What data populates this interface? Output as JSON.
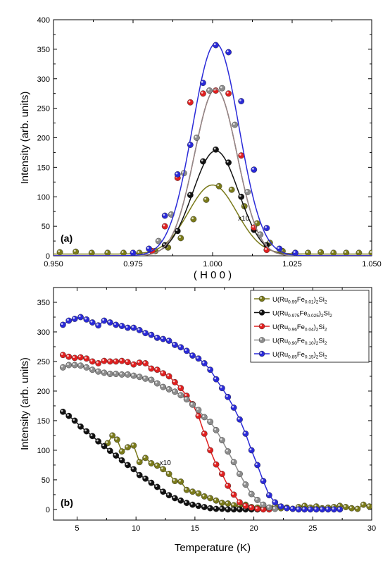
{
  "chart_data": [
    {
      "type": "scatter",
      "panel_label": "(a)",
      "xlabel": "( H 0 0 )",
      "ylabel": "Intensity (arb. units)",
      "xlim": [
        0.95,
        1.05
      ],
      "ylim": [
        0,
        400
      ],
      "xticks": [
        0.95,
        0.975,
        1.0,
        1.025,
        1.05
      ],
      "xtick_labels": [
        "0.950",
        "0.975",
        "1.000",
        "1.025",
        "1.050"
      ],
      "yticks": [
        0,
        50,
        100,
        150,
        200,
        250,
        300,
        350,
        400
      ],
      "ytick_labels": [
        "0",
        "50",
        "100",
        "150",
        "200",
        "250",
        "300",
        "350",
        "400"
      ],
      "annotations": [
        {
          "text": "x10",
          "x": 1.008,
          "y": 60
        }
      ],
      "series": [
        {
          "color": "#7a7a1a",
          "fit_center": 1.0,
          "fit_amplitude": 117,
          "fit_sigma": 0.0076,
          "fit_baseline": 3,
          "x": [
            0.952,
            0.957,
            0.962,
            0.967,
            0.972,
            0.977,
            0.982,
            0.986,
            0.99,
            0.994,
            0.998,
            1.002,
            1.006,
            1.01,
            1.014,
            1.018,
            1.022,
            1.026,
            1.03,
            1.034,
            1.038,
            1.042,
            1.046,
            1.05
          ],
          "y": [
            6,
            7,
            5,
            5,
            5,
            5,
            8,
            14,
            30,
            62,
            95,
            118,
            112,
            84,
            55,
            22,
            8,
            5,
            5,
            6,
            5,
            5,
            5,
            5
          ]
        },
        {
          "color": "#111111",
          "fit_center": 1.001,
          "fit_amplitude": 178,
          "fit_sigma": 0.0072,
          "x": [
            0.985,
            0.989,
            0.993,
            0.997,
            1.001,
            1.005,
            1.009,
            1.013,
            1.017
          ],
          "y": [
            18,
            42,
            103,
            160,
            180,
            158,
            100,
            44,
            18
          ]
        },
        {
          "color": "#e02020",
          "fit_center": 1.001,
          "fit_amplitude": 283,
          "fit_sigma": 0.0067,
          "x": [
            0.981,
            0.985,
            0.989,
            0.993,
            0.997,
            1.001,
            1.005,
            1.009,
            1.013,
            1.017
          ],
          "y": [
            8,
            50,
            132,
            260,
            275,
            280,
            275,
            170,
            48,
            10
          ]
        },
        {
          "color": "#8c8c8c",
          "fit_center": 1.001,
          "fit_amplitude": 283,
          "fit_sigma": 0.0067,
          "x": [
            0.983,
            0.987,
            0.991,
            0.995,
            0.999,
            1.003,
            1.007,
            1.011,
            1.015
          ],
          "y": [
            25,
            70,
            140,
            200,
            280,
            284,
            222,
            108,
            36
          ]
        },
        {
          "color": "#2a2ad8",
          "fit_center": 1.001,
          "fit_amplitude": 360,
          "fit_sigma": 0.0073,
          "x": [
            0.975,
            0.98,
            0.985,
            0.989,
            0.993,
            0.997,
            1.001,
            1.005,
            1.009,
            1.013,
            1.017,
            1.021,
            1.026
          ],
          "y": [
            5,
            12,
            68,
            138,
            188,
            293,
            357,
            345,
            262,
            146,
            47,
            12,
            5
          ]
        }
      ]
    },
    {
      "type": "line",
      "panel_label": "(b)",
      "xlabel": "Temperature (K)",
      "ylabel": "Intensity (arb. units)",
      "xlim": [
        3,
        30
      ],
      "ylim": [
        -18,
        375
      ],
      "xticks": [
        5,
        10,
        15,
        20,
        25,
        30
      ],
      "xtick_labels": [
        "5",
        "10",
        "15",
        "20",
        "25",
        "30"
      ],
      "yticks": [
        0,
        50,
        100,
        150,
        200,
        250,
        300,
        350
      ],
      "ytick_labels": [
        "0",
        "50",
        "100",
        "150",
        "200",
        "250",
        "300",
        "350"
      ],
      "legend_position": "top-right",
      "annotations": [
        {
          "text": "x10",
          "x": 12.0,
          "y": 75
        }
      ],
      "series": [
        {
          "name": "U(Ru0.99Fe0.01)2Si2",
          "legend_parts": [
            "U(Ru",
            "0.99",
            "Fe",
            "0.01",
            ")",
            "2",
            "Si",
            "2"
          ],
          "color": "#7a7a1a",
          "x": [
            7.6,
            8.0,
            8.4,
            8.8,
            9.3,
            9.8,
            10.3,
            10.8,
            11.3,
            11.8,
            12.3,
            12.8,
            13.3,
            13.8,
            14.3,
            14.8,
            15.3,
            15.8,
            16.3,
            16.8,
            17.3,
            17.8,
            18.3,
            18.8,
            19.3,
            19.8,
            20.3,
            20.8,
            21.3,
            21.8,
            22.3,
            22.8,
            23.3,
            23.8,
            24.3,
            24.8,
            25.3,
            25.8,
            26.3,
            26.8,
            27.3,
            27.8,
            28.3,
            28.8,
            29.3,
            29.8
          ],
          "y": [
            112,
            125,
            118,
            98,
            105,
            108,
            80,
            87,
            78,
            74,
            68,
            60,
            48,
            47,
            33,
            30,
            27,
            22,
            19,
            15,
            11,
            10,
            7,
            6,
            8,
            4,
            3,
            2,
            3,
            5,
            2,
            3,
            1,
            4,
            6,
            3,
            5,
            2,
            3,
            4,
            6,
            4,
            2,
            1,
            8,
            5
          ]
        },
        {
          "name": "U(Ru0.975Fe0.025)2Si2",
          "legend_parts": [
            "U(Ru",
            "0.975",
            "Fe",
            "0.025",
            ")",
            "2",
            "Si",
            "2"
          ],
          "color": "#111111",
          "x": [
            3.8,
            4.3,
            4.8,
            5.3,
            5.8,
            6.3,
            6.8,
            7.3,
            7.8,
            8.3,
            8.8,
            9.3,
            9.8,
            10.3,
            10.8,
            11.3,
            11.8,
            12.3,
            12.8,
            13.3,
            13.8,
            14.3,
            14.8,
            15.3,
            15.8,
            16.3,
            16.8,
            17.3,
            17.8,
            18.3,
            18.8,
            19.3,
            19.8,
            20.3
          ],
          "y": [
            165,
            158,
            150,
            140,
            132,
            124,
            115,
            107,
            99,
            91,
            83,
            75,
            68,
            58,
            52,
            45,
            38,
            30,
            24,
            19,
            15,
            11,
            8,
            6,
            4,
            2,
            1,
            1,
            0,
            0,
            0,
            0,
            0,
            0
          ]
        },
        {
          "name": "U(Ru0.96Fe0.04)2Si2",
          "legend_parts": [
            "U(Ru",
            "0.96",
            "Fe",
            "0.04",
            ")",
            "2",
            "Si",
            "2"
          ],
          "color": "#e02020",
          "x": [
            3.8,
            4.3,
            4.8,
            5.3,
            5.8,
            6.3,
            6.8,
            7.3,
            7.8,
            8.3,
            8.8,
            9.3,
            9.8,
            10.3,
            10.8,
            11.3,
            11.8,
            12.3,
            12.8,
            13.3,
            13.8,
            14.3,
            14.8,
            15.3,
            15.8,
            16.3,
            16.8,
            17.3,
            17.8,
            18.3,
            18.8,
            19.3,
            19.8,
            20.3,
            20.8,
            21.3
          ],
          "y": [
            261,
            258,
            256,
            257,
            255,
            250,
            247,
            251,
            250,
            250,
            251,
            249,
            245,
            248,
            247,
            238,
            236,
            230,
            225,
            215,
            205,
            192,
            178,
            158,
            128,
            100,
            76,
            60,
            40,
            25,
            12,
            6,
            3,
            1,
            0,
            0
          ]
        },
        {
          "name": "U(Ru0.90Fe0.10)2Si2",
          "legend_parts": [
            "U(Ru",
            "0.90",
            "Fe",
            "0.10",
            ")",
            "2",
            "Si",
            "2"
          ],
          "color": "#8c8c8c",
          "x": [
            3.8,
            4.3,
            4.8,
            5.3,
            5.8,
            6.3,
            6.8,
            7.3,
            7.8,
            8.3,
            8.8,
            9.3,
            9.8,
            10.3,
            10.8,
            11.3,
            11.8,
            12.3,
            12.8,
            13.3,
            13.8,
            14.3,
            14.8,
            15.3,
            15.8,
            16.3,
            16.8,
            17.3,
            17.8,
            18.3,
            18.8,
            19.3,
            19.8,
            20.3,
            20.8,
            21.3,
            21.8
          ],
          "y": [
            240,
            244,
            244,
            243,
            240,
            236,
            233,
            231,
            229,
            229,
            228,
            228,
            226,
            224,
            221,
            219,
            213,
            207,
            203,
            199,
            193,
            186,
            177,
            168,
            156,
            148,
            134,
            117,
            98,
            80,
            60,
            42,
            26,
            16,
            8,
            3,
            1
          ]
        },
        {
          "name": "U(Ru0.85Fe0.15)2Si2",
          "legend_parts": [
            "U(Ru",
            "0.85",
            "Fe",
            "0.15",
            ")",
            "2",
            "Si",
            "2"
          ],
          "color": "#2a2ad8",
          "x": [
            3.8,
            4.3,
            4.8,
            5.3,
            5.8,
            6.3,
            6.8,
            7.3,
            7.8,
            8.3,
            8.8,
            9.3,
            9.8,
            10.3,
            10.8,
            11.3,
            11.8,
            12.3,
            12.8,
            13.3,
            13.8,
            14.3,
            14.8,
            15.3,
            15.8,
            16.3,
            16.8,
            17.3,
            17.8,
            18.3,
            18.8,
            19.3,
            19.8,
            20.3,
            20.8,
            21.3,
            21.8,
            22.3,
            22.8,
            23.3,
            23.8,
            24.3,
            24.8,
            25.3,
            25.8,
            26.3,
            26.8,
            27.3
          ],
          "y": [
            312,
            319,
            322,
            325,
            321,
            316,
            311,
            319,
            316,
            312,
            310,
            307,
            307,
            303,
            298,
            295,
            290,
            288,
            285,
            278,
            274,
            268,
            260,
            255,
            247,
            236,
            220,
            205,
            190,
            172,
            152,
            128,
            100,
            75,
            48,
            24,
            12,
            5,
            2,
            1,
            0,
            0,
            0,
            0,
            0,
            0,
            0,
            0
          ]
        }
      ]
    }
  ]
}
